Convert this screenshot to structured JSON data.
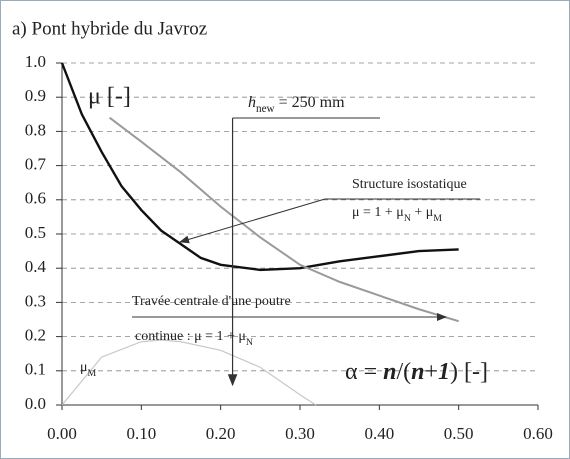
{
  "chart_data": {
    "type": "line",
    "title": "a) Pont hybride du Javroz",
    "xlim": [
      0,
      0.6
    ],
    "xticks": [
      {
        "value": 0,
        "label": "0.00"
      },
      {
        "value": 0.1,
        "label": "0.10"
      },
      {
        "value": 0.2,
        "label": "0.20"
      },
      {
        "value": 0.3,
        "label": "0.30"
      },
      {
        "value": 0.4,
        "label": "0.40"
      },
      {
        "value": 0.5,
        "label": "0.50"
      },
      {
        "value": 0.6,
        "label": "0.60"
      }
    ],
    "ylim": [
      0,
      1
    ],
    "yticks": [
      {
        "value": 0,
        "label": "0.0"
      },
      0.1,
      0.2,
      0.3,
      0.4,
      0.5,
      0.6,
      0.7,
      0.8,
      0.9,
      {
        "value": 1,
        "label": "1.0"
      }
    ],
    "grid": true,
    "y_label": "μ [-]",
    "x_label": [
      "α = ",
      "n",
      "/(",
      "n",
      "+",
      "1",
      ")  [-]"
    ],
    "series": [
      {
        "name": "μ = 1 + μN + μM",
        "color": "#111111",
        "x": [
          0,
          0.025,
          0.05,
          0.075,
          0.1,
          0.125,
          0.15,
          0.175,
          0.2,
          0.25,
          0.3,
          0.35,
          0.4,
          0.45,
          0.5
        ],
        "values": [
          1,
          0.85,
          0.74,
          0.64,
          0.57,
          0.51,
          0.47,
          0.43,
          0.41,
          0.395,
          0.4,
          0.42,
          0.435,
          0.45,
          0.455
        ]
      },
      {
        "name": "μ = 1 + μN",
        "color": "#9a9a9a",
        "x": [
          0.06,
          0.1,
          0.15,
          0.2,
          0.25,
          0.3,
          0.35,
          0.4,
          0.45,
          0.5
        ],
        "values": [
          0.84,
          0.77,
          0.68,
          0.58,
          0.49,
          0.41,
          0.36,
          0.32,
          0.28,
          0.245
        ]
      },
      {
        "name": "μM",
        "color": "#c8c8c8",
        "x": [
          0,
          0.05,
          0.1,
          0.125,
          0.15,
          0.2,
          0.25,
          0.3,
          0.32
        ],
        "values": [
          0,
          0.14,
          0.185,
          0.19,
          0.185,
          0.16,
          0.11,
          0.03,
          0
        ]
      }
    ],
    "annotations": {
      "h_new": [
        "h",
        "new",
        " = 250 mm"
      ],
      "hx": 0.215,
      "iso_title": "Structure isostatique",
      "iso_formula": [
        "μ = 1 + μ",
        "N",
        " + μ",
        "M"
      ],
      "cont_title": "Travée centrale d'une poutre",
      "cont_formula": [
        "continue : μ = 1 + μ",
        "N"
      ],
      "muM": [
        "μ",
        "M"
      ]
    }
  }
}
